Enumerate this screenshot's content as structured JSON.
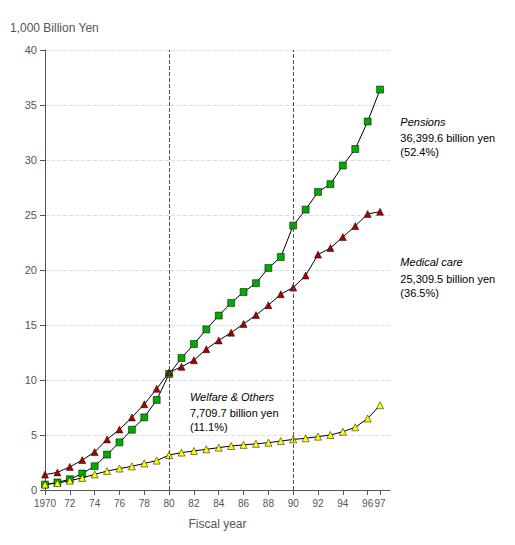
{
  "chart_data": {
    "type": "line",
    "x_label": "Fiscal year",
    "y_label": "1,000 Billion Yen",
    "x": [
      1970,
      1971,
      1972,
      1973,
      1974,
      1975,
      1976,
      1977,
      1978,
      1979,
      1980,
      1981,
      1982,
      1983,
      1984,
      1985,
      1986,
      1987,
      1988,
      1989,
      1990,
      1991,
      1992,
      1993,
      1994,
      1995,
      1996,
      1997
    ],
    "series": [
      {
        "name": "Pensions",
        "color": "#00AA00",
        "marker": "square",
        "annotation": "36,399.6 billion yen\n(52.4%)",
        "values": [
          0.49,
          0.69,
          0.98,
          1.5,
          2.16,
          3.22,
          4.33,
          5.48,
          6.6,
          8.19,
          10.55,
          12.0,
          13.27,
          14.6,
          15.86,
          17.0,
          18.0,
          18.8,
          20.18,
          21.18,
          24.04,
          25.49,
          27.1,
          27.8,
          29.5,
          31.0,
          33.5,
          36.4
        ]
      },
      {
        "name": "Medical care",
        "color": "#AA0000",
        "marker": "triangle",
        "annotation": "25,309.5 billion yen\n(36.5%)",
        "values": [
          1.4,
          1.6,
          2.1,
          2.72,
          3.45,
          4.6,
          5.5,
          6.6,
          7.8,
          9.2,
          10.7,
          11.2,
          11.8,
          12.8,
          13.6,
          14.3,
          15.1,
          15.9,
          16.8,
          17.8,
          18.4,
          19.5,
          21.4,
          22.0,
          23.0,
          24.0,
          25.1,
          25.3
        ]
      },
      {
        "name": "Welfare & Others",
        "color": "#FFFF00",
        "marker": "triangle",
        "annotation": "7,709.7 billion yen\n(11.1%)",
        "values": [
          0.51,
          0.63,
          0.85,
          1.1,
          1.42,
          1.72,
          1.95,
          2.15,
          2.42,
          2.67,
          3.18,
          3.4,
          3.55,
          3.7,
          3.85,
          4.0,
          4.1,
          4.2,
          4.3,
          4.45,
          4.6,
          4.7,
          4.85,
          5.0,
          5.3,
          5.7,
          6.5,
          7.71
        ]
      }
    ],
    "vlines": [
      1980,
      1990
    ],
    "xlim": [
      1970,
      1997.8
    ],
    "xticks": [
      1970,
      {
        "value": 1972,
        "label": "72"
      },
      {
        "value": 1974,
        "label": "74"
      },
      {
        "value": 1976,
        "label": "76"
      },
      {
        "value": 1978,
        "label": "78"
      },
      {
        "value": 1980,
        "label": "80"
      },
      {
        "value": 1982,
        "label": "82"
      },
      {
        "value": 1984,
        "label": "84"
      },
      {
        "value": 1986,
        "label": "86"
      },
      {
        "value": 1988,
        "label": "88"
      },
      {
        "value": 1990,
        "label": "90"
      },
      {
        "value": 1992,
        "label": "92"
      },
      {
        "value": 1994,
        "label": "94"
      },
      {
        "value": 1996,
        "label": "96"
      },
      {
        "value": 1997,
        "label": "97"
      }
    ],
    "ylim": [
      0,
      40
    ],
    "yticks": [
      0,
      5,
      10,
      15,
      20,
      25,
      30,
      35,
      40
    ],
    "grid": true
  }
}
